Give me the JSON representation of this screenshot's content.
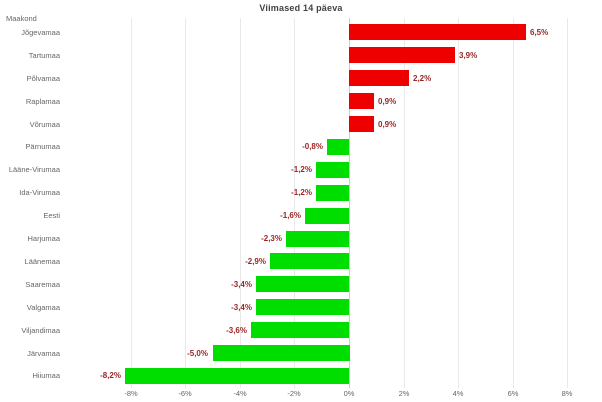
{
  "title": "Viimased 14 päeva",
  "axis_header": "Maakond",
  "colors": {
    "positive_bar": "#ee0000",
    "negative_bar": "#00de00",
    "data_label": "#9b2626",
    "grid_line": "#e9e9e9",
    "zero_line": "#f6bcbc",
    "axis_text": "#666666",
    "title_text": "#424242"
  },
  "chart_data": {
    "type": "bar",
    "orientation": "horizontal",
    "title": "Viimased 14 päeva",
    "ylabel": "Maakond",
    "xlabel": "",
    "xlim": [
      -8,
      8
    ],
    "grid": true,
    "legend": "none",
    "x_tick_labels": [
      "-8%",
      "-6%",
      "-4%",
      "-2%",
      "0%",
      "2%",
      "4%",
      "6%",
      "8%"
    ],
    "x_tick_values": [
      -8,
      -6,
      -4,
      -2,
      0,
      2,
      4,
      6,
      8
    ],
    "categories": [
      "Jõgevamaa",
      "Tartumaa",
      "Põlvamaa",
      "Raplamaa",
      "Võrumaa",
      "Pärnumaa",
      "Lääne-Virumaa",
      "Ida-Virumaa",
      "Eesti",
      "Harjumaa",
      "Läänemaa",
      "Saaremaa",
      "Valgamaa",
      "Viljandimaa",
      "Järvamaa",
      "Hiiumaa"
    ],
    "values": [
      6.5,
      3.9,
      2.2,
      0.9,
      0.9,
      -0.8,
      -1.2,
      -1.2,
      -1.6,
      -2.3,
      -2.9,
      -3.4,
      -3.4,
      -3.6,
      -5.0,
      -8.2
    ],
    "value_labels": [
      "6,5%",
      "3,9%",
      "2,2%",
      "0,9%",
      "0,9%",
      "-0,8%",
      "-1,2%",
      "-1,2%",
      "-1,6%",
      "-2,3%",
      "-2,9%",
      "-3,4%",
      "-3,4%",
      "-3,6%",
      "-5,0%",
      "-8,2%"
    ]
  }
}
